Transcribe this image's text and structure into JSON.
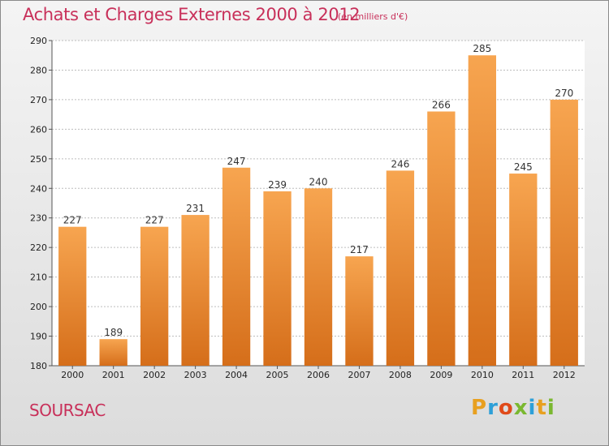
{
  "chart_data": {
    "type": "bar",
    "title": "Achats et Charges Externes 2000 à 2012",
    "subtitle": "(en milliers d'€)",
    "categories": [
      "2000",
      "2001",
      "2002",
      "2003",
      "2004",
      "2005",
      "2006",
      "2007",
      "2008",
      "2009",
      "2010",
      "2011",
      "2012"
    ],
    "values": [
      227,
      189,
      227,
      231,
      247,
      239,
      240,
      217,
      246,
      266,
      285,
      245,
      270
    ],
    "ylim": [
      180,
      290
    ],
    "yticks": [
      180,
      190,
      200,
      210,
      220,
      230,
      240,
      250,
      260,
      270,
      280,
      290
    ],
    "grid": true,
    "colors": {
      "bar_light": "#f7a550",
      "bar_dark": "#d56e1a",
      "title": "#c8305a",
      "grid": "#bdbdbd"
    }
  },
  "footer": {
    "place": "SOURSAC",
    "logo_letters": [
      "P",
      "r",
      "o",
      "x",
      "i",
      "t",
      "i"
    ],
    "logo_colors": [
      "#e8a020",
      "#2ea0d8",
      "#e04a1a",
      "#7ab830",
      "#2ea0d8",
      "#e8a020",
      "#7ab830"
    ]
  }
}
